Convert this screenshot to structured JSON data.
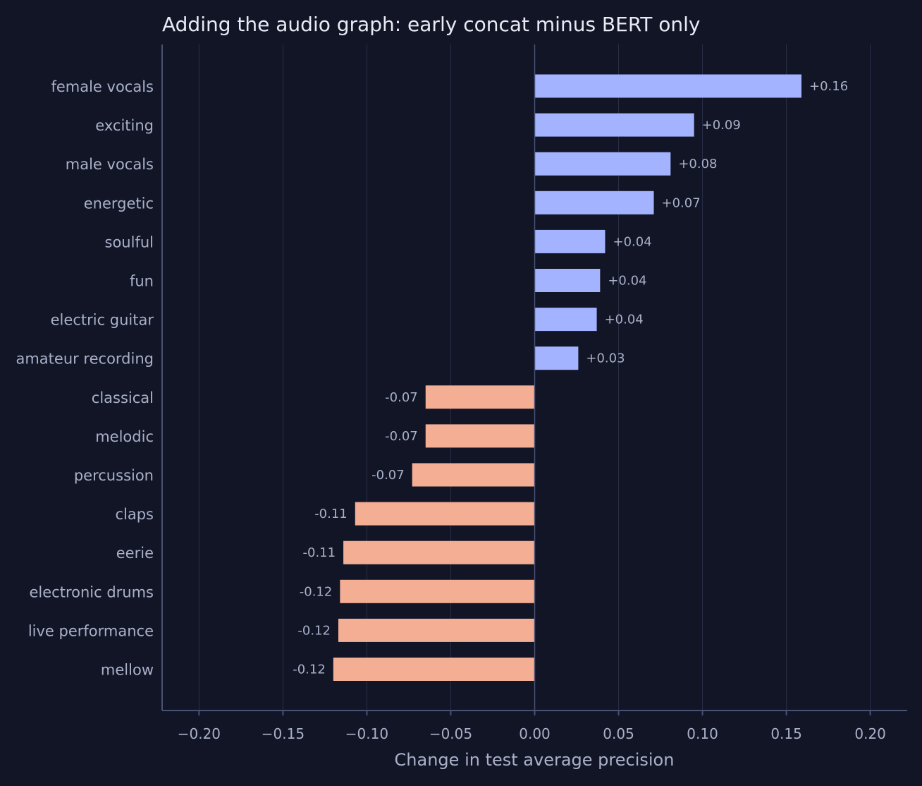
{
  "chart_data": {
    "type": "bar",
    "orientation": "horizontal",
    "title": "Adding the audio graph: early concat minus BERT only",
    "xlabel": "Change in test average precision",
    "ylabel": "",
    "xlim": [
      -0.222,
      0.222
    ],
    "xticks": [
      -0.2,
      -0.15,
      -0.1,
      -0.05,
      0.0,
      0.05,
      0.1,
      0.15,
      0.2
    ],
    "xtick_labels": [
      "−0.20",
      "−0.15",
      "−0.10",
      "−0.05",
      "0.00",
      "0.05",
      "0.10",
      "0.15",
      "0.20"
    ],
    "grid": "vertical",
    "categories": [
      "female vocals",
      "exciting",
      "male vocals",
      "energetic",
      "soulful",
      "fun",
      "electric guitar",
      "amateur recording",
      "classical",
      "melodic",
      "percussion",
      "claps",
      "eerie",
      "electronic drums",
      "live performance",
      "mellow"
    ],
    "values": [
      0.159,
      0.095,
      0.081,
      0.071,
      0.042,
      0.039,
      0.037,
      0.026,
      -0.065,
      -0.065,
      -0.073,
      -0.107,
      -0.114,
      -0.116,
      -0.117,
      -0.12
    ],
    "data_labels": [
      "+0.16",
      "+0.09",
      "+0.08",
      "+0.07",
      "+0.04",
      "+0.04",
      "+0.04",
      "+0.03",
      "-0.07",
      "-0.07",
      "-0.07",
      "-0.11",
      "-0.11",
      "-0.12",
      "-0.12",
      "-0.12"
    ],
    "colors": {
      "positive": "#a3b3ff",
      "negative": "#f4ae94",
      "background": "#111526"
    }
  }
}
